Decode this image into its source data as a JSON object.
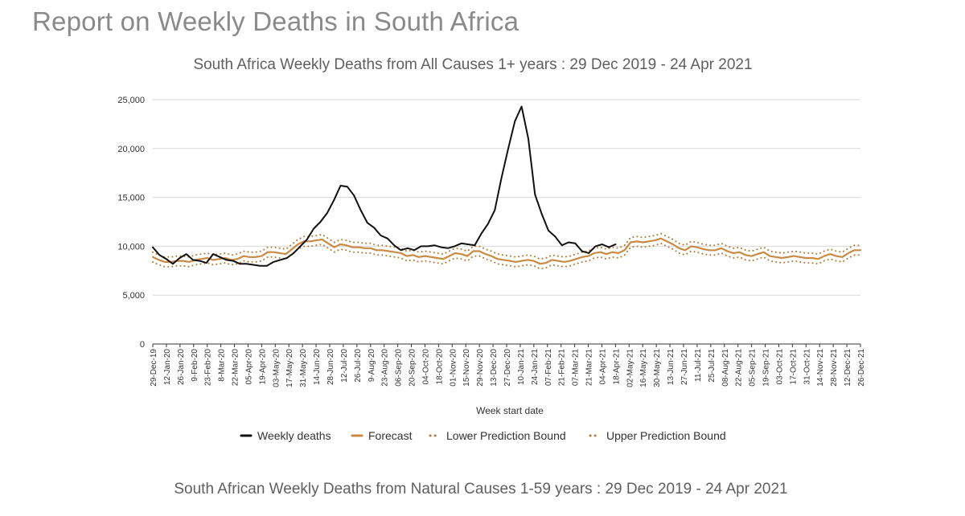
{
  "page": {
    "title": "Report on Weekly Deaths in South Africa",
    "second_chart_title": "South African Weekly Deaths from Natural Causes 1-59 years : 29 Dec 2019 - 24 Apr 2021"
  },
  "colors": {
    "weekly": "#111111",
    "forecast": "#c98a44",
    "bounds": "#b57a38",
    "grid": "#d9d9d9"
  },
  "chart_data": {
    "type": "line",
    "title": "South Africa Weekly Deaths from All Causes 1+ years : 29 Dec 2019 - 24 Apr 2021",
    "xlabel": "Week start date",
    "ylabel": "",
    "ylim": [
      0,
      25000
    ],
    "yticks": [
      0,
      5000,
      10000,
      15000,
      20000,
      25000
    ],
    "ytick_labels": [
      "0",
      "5,000",
      "10,000",
      "15,000",
      "20,000",
      "25,000"
    ],
    "grid": true,
    "legend_position": "bottom",
    "x_tick_labels": [
      "29-Dec-19",
      "12-Jan-20",
      "26-Jan-20",
      "9-Feb-20",
      "23-Feb-20",
      "8-Mar-20",
      "22-Mar-20",
      "05-Apr-20",
      "19-Apr-20",
      "03-May-20",
      "17-May-20",
      "31-May-20",
      "14-Jun-20",
      "28-Jun-20",
      "12-Jul-20",
      "26-Jul-20",
      "9-Aug-20",
      "23-Aug-20",
      "06-Sep-20",
      "20-Sep-20",
      "04-Oct-20",
      "18-Oct-20",
      "01-Nov-20",
      "15-Nov-20",
      "29-Nov-20",
      "13-Dec-20",
      "27-Dec-20",
      "10-Jan-21",
      "24-Jan-21",
      "07-Feb-21",
      "21-Feb-21",
      "07-Mar-21",
      "21-Mar-21",
      "04-Apr-21",
      "18-Apr-21",
      "02-May-21",
      "16-May-21",
      "30-May-21",
      "13-Jun-21",
      "27-Jun-21",
      "11-Jul-21",
      "25-Jul-21",
      "08-Aug-21",
      "22-Aug-21",
      "05-Sep-21",
      "19-Sep-21",
      "03-Oct-21",
      "17-Oct-21",
      "31-Oct-21",
      "14-Nov-21",
      "28-Nov-21",
      "12-Dec-21",
      "26-Dec-21"
    ],
    "series": [
      {
        "name": "Weekly deaths",
        "style": "solid-black",
        "values": [
          9900,
          9100,
          8700,
          8200,
          8800,
          9200,
          8600,
          8500,
          8300,
          9200,
          8900,
          8600,
          8500,
          8200,
          8200,
          8100,
          8000,
          8000,
          8400,
          8600,
          8800,
          9300,
          10000,
          10700,
          11800,
          12500,
          13400,
          14700,
          16200,
          16100,
          15200,
          13700,
          12400,
          11900,
          11100,
          10800,
          10100,
          9600,
          9800,
          9600,
          10000,
          10000,
          10100,
          9900,
          9800,
          10000,
          10300,
          10200,
          10100,
          11300,
          12300,
          13700,
          17000,
          20000,
          22800,
          24300,
          21000,
          15300,
          13300,
          11600,
          11000,
          10100,
          10400,
          10300,
          9500,
          9300,
          10000,
          10200,
          9900,
          10200
        ]
      },
      {
        "name": "Forecast",
        "style": "solid-orange",
        "values": [
          8900,
          8600,
          8400,
          8400,
          8500,
          8500,
          8400,
          8600,
          8700,
          8800,
          8600,
          8700,
          8800,
          8600,
          8700,
          9000,
          8900,
          8900,
          9000,
          9400,
          9400,
          9300,
          9200,
          9700,
          10200,
          10500,
          10500,
          10600,
          10700,
          10300,
          9900,
          10200,
          10100,
          9900,
          9900,
          9800,
          9800,
          9600,
          9600,
          9500,
          9400,
          9300,
          9000,
          9100,
          8900,
          9000,
          8900,
          8800,
          8700,
          9000,
          9300,
          9200,
          9000,
          9500,
          9500,
          9200,
          9000,
          8700,
          8600,
          8500,
          8400,
          8500,
          8600,
          8500,
          8200,
          8300,
          8600,
          8500,
          8400,
          8500,
          8700,
          8900,
          9000,
          9300,
          9400,
          9200,
          9400,
          9300,
          9600,
          10400,
          10500,
          10400,
          10500,
          10600,
          10800,
          10500,
          10200,
          9800,
          9600,
          10000,
          9900,
          9700,
          9600,
          9600,
          9800,
          9500,
          9300,
          9400,
          9100,
          9000,
          9200,
          9400,
          9000,
          8900,
          8800,
          8900,
          9000,
          8900,
          8800,
          8800,
          8700,
          9000,
          9200,
          9000,
          8900,
          9300,
          9600,
          9600
        ]
      },
      {
        "name": "Lower Prediction Bound",
        "style": "dotted-orange",
        "values": [
          8400,
          8100,
          7900,
          7900,
          8000,
          8000,
          7900,
          8100,
          8200,
          8300,
          8100,
          8200,
          8300,
          8100,
          8200,
          8500,
          8400,
          8400,
          8500,
          8900,
          8900,
          8800,
          8700,
          9200,
          9700,
          10000,
          10000,
          10100,
          10200,
          9800,
          9400,
          9700,
          9600,
          9400,
          9400,
          9300,
          9300,
          9100,
          9100,
          9000,
          8900,
          8800,
          8500,
          8600,
          8400,
          8500,
          8400,
          8300,
          8200,
          8500,
          8800,
          8700,
          8500,
          9000,
          9000,
          8700,
          8500,
          8200,
          8100,
          8000,
          7900,
          8000,
          8100,
          8000,
          7700,
          7800,
          8100,
          8000,
          7900,
          8000,
          8200,
          8400,
          8500,
          8800,
          8900,
          8700,
          8900,
          8800,
          9100,
          9900,
          10000,
          9900,
          10000,
          10100,
          10300,
          10000,
          9700,
          9300,
          9100,
          9500,
          9400,
          9200,
          9100,
          9100,
          9300,
          9000,
          8800,
          8900,
          8600,
          8500,
          8700,
          8900,
          8500,
          8400,
          8300,
          8400,
          8500,
          8400,
          8300,
          8300,
          8200,
          8500,
          8700,
          8500,
          8400,
          8800,
          9100,
          9100
        ]
      },
      {
        "name": "Upper Prediction Bound",
        "style": "dotted-orange",
        "values": [
          9400,
          9100,
          8900,
          8900,
          9000,
          9000,
          8900,
          9100,
          9200,
          9300,
          9100,
          9200,
          9300,
          9100,
          9200,
          9500,
          9400,
          9400,
          9500,
          9900,
          9900,
          9800,
          9700,
          10200,
          10700,
          11000,
          11000,
          11100,
          11200,
          10800,
          10400,
          10700,
          10600,
          10400,
          10400,
          10300,
          10300,
          10100,
          10100,
          10000,
          9900,
          9800,
          9500,
          9600,
          9400,
          9500,
          9400,
          9300,
          9200,
          9500,
          9800,
          9700,
          9500,
          10000,
          10000,
          9700,
          9500,
          9200,
          9100,
          9000,
          8900,
          9000,
          9100,
          9000,
          8700,
          8800,
          9100,
          9000,
          8900,
          9000,
          9200,
          9400,
          9500,
          9800,
          9900,
          9700,
          9900,
          9800,
          10100,
          10900,
          11000,
          10900,
          11000,
          11100,
          11300,
          11000,
          10700,
          10300,
          10100,
          10500,
          10400,
          10200,
          10100,
          10100,
          10300,
          10000,
          9800,
          9900,
          9600,
          9500,
          9700,
          9900,
          9500,
          9400,
          9300,
          9400,
          9500,
          9400,
          9300,
          9300,
          9200,
          9500,
          9700,
          9500,
          9400,
          9800,
          10100,
          10100
        ]
      }
    ]
  }
}
